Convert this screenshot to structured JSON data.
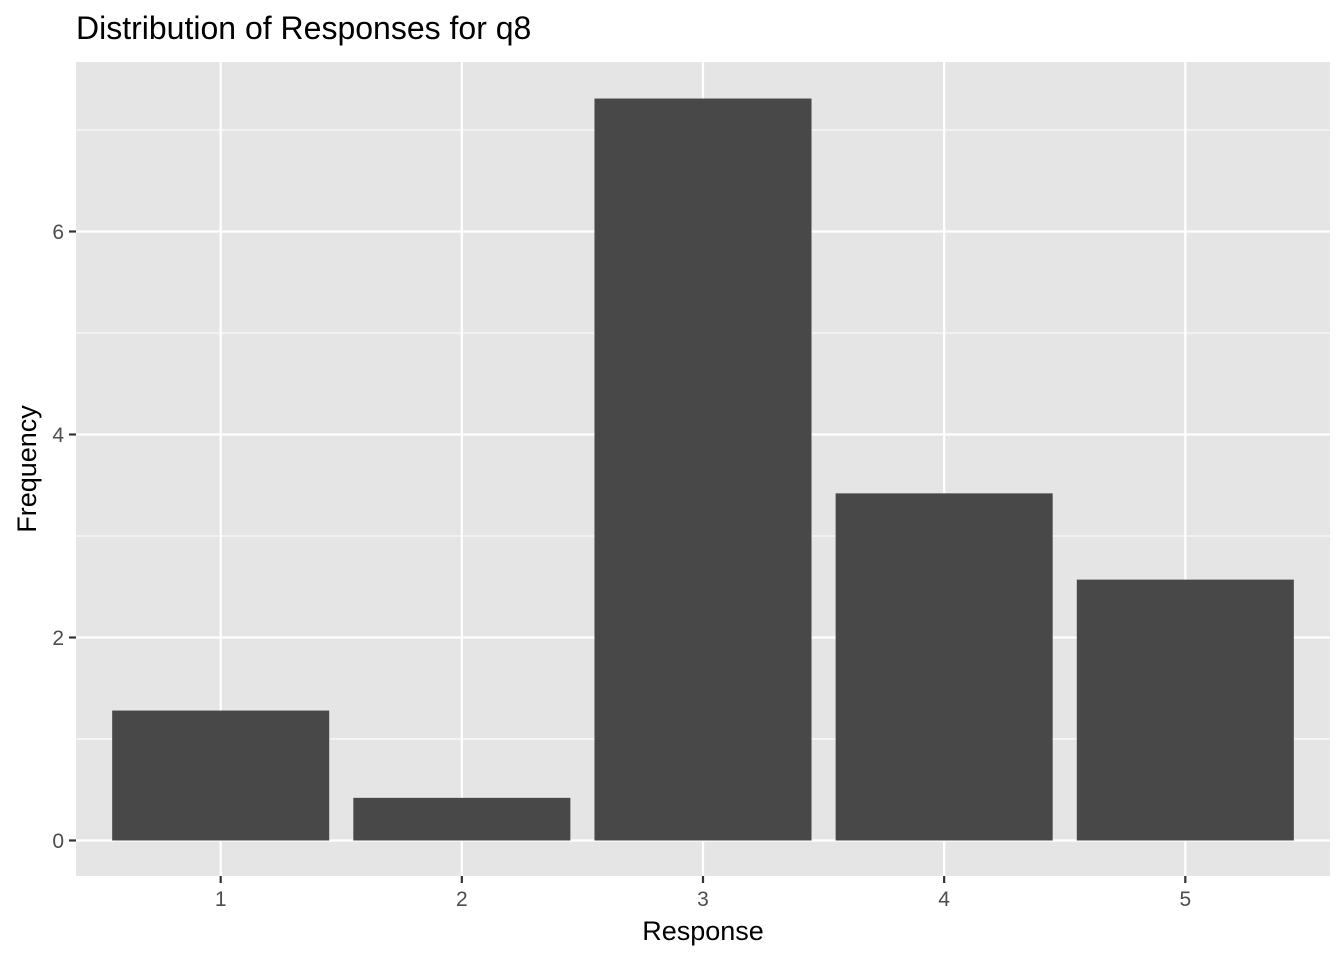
{
  "chart_data": {
    "type": "bar",
    "title": "Distribution of Responses for q8",
    "xlabel": "Response",
    "ylabel": "Frequency",
    "categories": [
      "1",
      "2",
      "3",
      "4",
      "5"
    ],
    "values": [
      1.28,
      0.42,
      7.31,
      3.42,
      2.57
    ],
    "x_ticks": [
      "1",
      "2",
      "3",
      "4",
      "5"
    ],
    "y_ticks": [
      0,
      2,
      4,
      6
    ],
    "ylim": [
      -0.35,
      7.67
    ],
    "grid": true,
    "legend": "none",
    "colors": {
      "bar": "#484848",
      "panel_background": "#e5e5e5",
      "grid_line": "#ffffff",
      "tick_label": "#4d4d4d"
    }
  }
}
